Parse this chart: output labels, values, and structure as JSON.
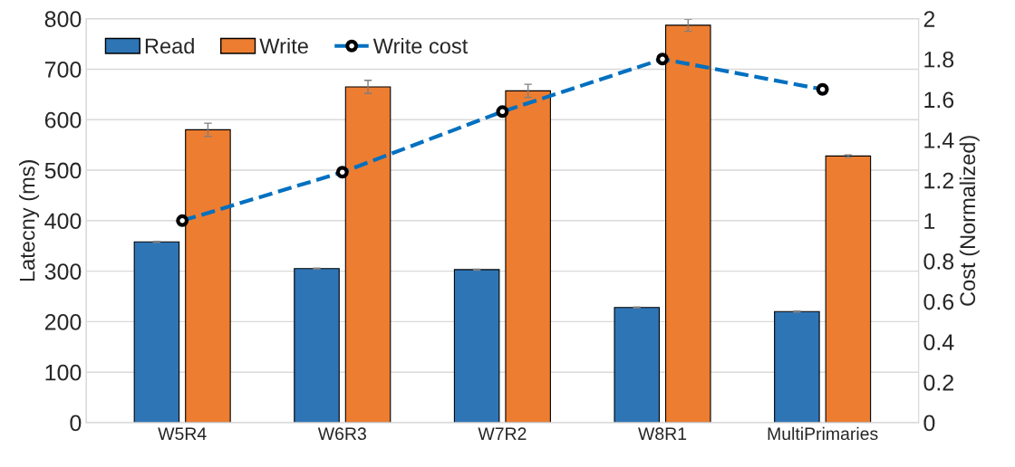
{
  "chart_data": {
    "type": "bar",
    "ylabel": "Latecny (ms)",
    "y2label": "Cost (Normalized)",
    "categories": [
      "W5R4",
      "W6R3",
      "W7R2",
      "W8R1",
      "MultiPrimaries"
    ],
    "series": [
      {
        "name": "Read",
        "color": "#2e75b6",
        "values": [
          358,
          305,
          303,
          228,
          220
        ],
        "errors": [
          1,
          1,
          1,
          1,
          1
        ]
      },
      {
        "name": "Write",
        "color": "#ed7d31",
        "values": [
          580,
          665,
          657,
          787,
          528
        ],
        "errors": [
          13,
          13,
          13,
          12,
          2
        ]
      },
      {
        "name": "Write cost",
        "type": "line",
        "axis": "y2",
        "color": "#0070c0",
        "marker": "circle",
        "line_style": "dashed",
        "values": [
          1,
          1.24,
          1.54,
          1.8,
          1.65
        ]
      }
    ],
    "ylim": [
      0,
      800
    ],
    "yticks": [
      0,
      100,
      200,
      300,
      400,
      500,
      600,
      700,
      800
    ],
    "y2lim": [
      0,
      2
    ],
    "y2ticks": [
      0,
      0.2,
      0.4,
      0.6,
      0.8,
      1,
      1.2,
      1.4,
      1.6,
      1.8,
      2
    ],
    "grid": "y",
    "legend": "top left"
  }
}
